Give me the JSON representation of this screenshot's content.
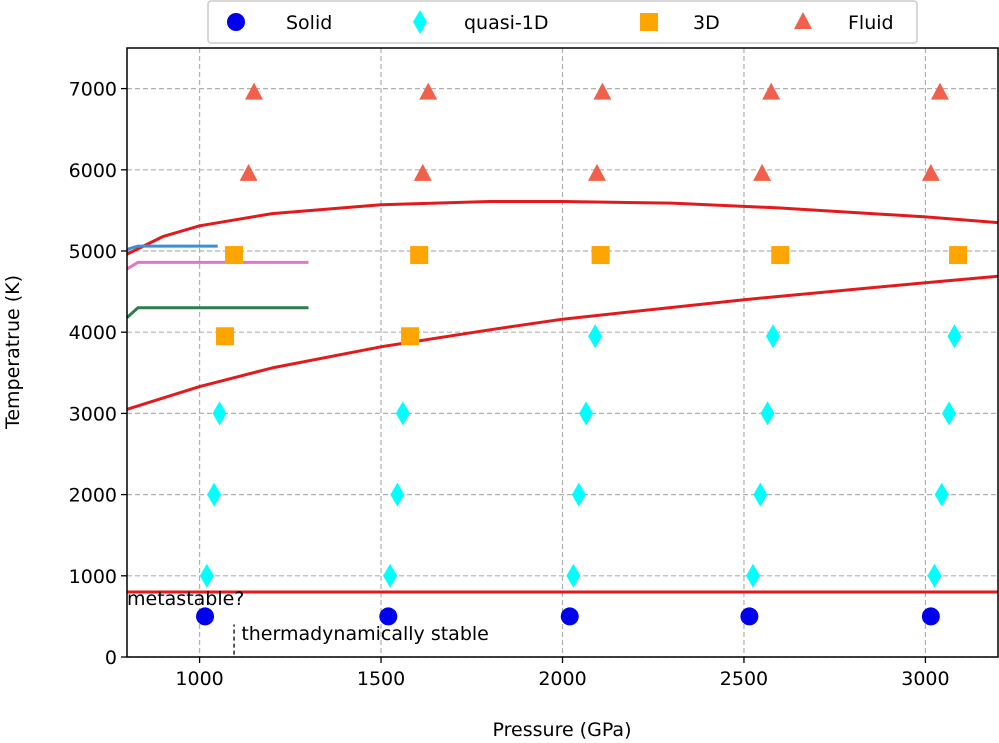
{
  "chart_data": {
    "type": "scatter",
    "title": "",
    "xlabel": "Pressure (GPa)",
    "ylabel": "Temperatrue (K)",
    "xlim": [
      800,
      3200
    ],
    "ylim": [
      0,
      7500
    ],
    "xticks": [
      1000,
      1500,
      2000,
      2500,
      3000
    ],
    "yticks": [
      0,
      1000,
      2000,
      3000,
      4000,
      5000,
      6000,
      7000
    ],
    "grid": true,
    "legend_placement": "top-center",
    "legend": [
      "Solid",
      "quasi-1D",
      "3D",
      "Fluid"
    ],
    "series": [
      {
        "name": "Solid",
        "marker": "circle",
        "color": "#0000ee",
        "points": [
          [
            1015,
            500
          ],
          [
            1520,
            500
          ],
          [
            2020,
            500
          ],
          [
            2515,
            500
          ],
          [
            3015,
            500
          ]
        ]
      },
      {
        "name": "quasi-1D",
        "marker": "diamond",
        "color": "#00ffff",
        "points": [
          [
            1020,
            1000
          ],
          [
            1040,
            2000
          ],
          [
            1055,
            3000
          ],
          [
            1525,
            1000
          ],
          [
            1545,
            2000
          ],
          [
            1560,
            3000
          ],
          [
            2030,
            1000
          ],
          [
            2045,
            2000
          ],
          [
            2065,
            3000
          ],
          [
            2090,
            3950
          ],
          [
            2525,
            1000
          ],
          [
            2545,
            2000
          ],
          [
            2565,
            3000
          ],
          [
            2580,
            3950
          ],
          [
            3025,
            1000
          ],
          [
            3045,
            2000
          ],
          [
            3065,
            3000
          ],
          [
            3080,
            3950
          ]
        ]
      },
      {
        "name": "3D",
        "marker": "square",
        "color": "#ffa500",
        "points": [
          [
            1070,
            3950
          ],
          [
            1095,
            4950
          ],
          [
            1580,
            3950
          ],
          [
            1605,
            4950
          ],
          [
            2105,
            4950
          ],
          [
            2600,
            4950
          ],
          [
            3090,
            4950
          ]
        ]
      },
      {
        "name": "Fluid",
        "marker": "triangle",
        "color": "#f0604a",
        "points": [
          [
            1135,
            5950
          ],
          [
            1150,
            6950
          ],
          [
            1615,
            5950
          ],
          [
            1630,
            6950
          ],
          [
            2095,
            5950
          ],
          [
            2110,
            6950
          ],
          [
            2550,
            5950
          ],
          [
            2575,
            6950
          ],
          [
            3015,
            5950
          ],
          [
            3040,
            6950
          ]
        ]
      }
    ],
    "lines": [
      {
        "color": "#e31a1c",
        "points": [
          [
            800,
            800
          ],
          [
            3200,
            800
          ]
        ]
      },
      {
        "color": "#e31a1c",
        "points": [
          [
            800,
            3050
          ],
          [
            1000,
            3330
          ],
          [
            1200,
            3560
          ],
          [
            1500,
            3820
          ],
          [
            1800,
            4030
          ],
          [
            2000,
            4160
          ],
          [
            2500,
            4400
          ],
          [
            3000,
            4610
          ],
          [
            3200,
            4690
          ]
        ]
      },
      {
        "color": "#e31a1c",
        "points": [
          [
            800,
            4960
          ],
          [
            900,
            5180
          ],
          [
            1000,
            5310
          ],
          [
            1200,
            5460
          ],
          [
            1500,
            5570
          ],
          [
            1800,
            5610
          ],
          [
            2000,
            5610
          ],
          [
            2300,
            5590
          ],
          [
            2600,
            5530
          ],
          [
            3000,
            5420
          ],
          [
            3200,
            5350
          ]
        ]
      },
      {
        "color": "#3a8fd9",
        "points": [
          [
            800,
            5020
          ],
          [
            830,
            5060
          ],
          [
            1050,
            5060
          ]
        ]
      },
      {
        "color": "#e377c2",
        "points": [
          [
            800,
            4780
          ],
          [
            830,
            4860
          ],
          [
            1300,
            4860
          ]
        ]
      },
      {
        "color": "#2e7d4f",
        "points": [
          [
            800,
            4180
          ],
          [
            830,
            4300
          ],
          [
            1300,
            4300
          ]
        ]
      }
    ],
    "annotations": [
      {
        "text": "metastable?",
        "x": 800,
        "y": 640
      },
      {
        "text": "thermadynamically stable",
        "x": 1115,
        "y": 210
      }
    ],
    "divider": {
      "x": 1095,
      "y0": 30,
      "y1": 400
    }
  }
}
